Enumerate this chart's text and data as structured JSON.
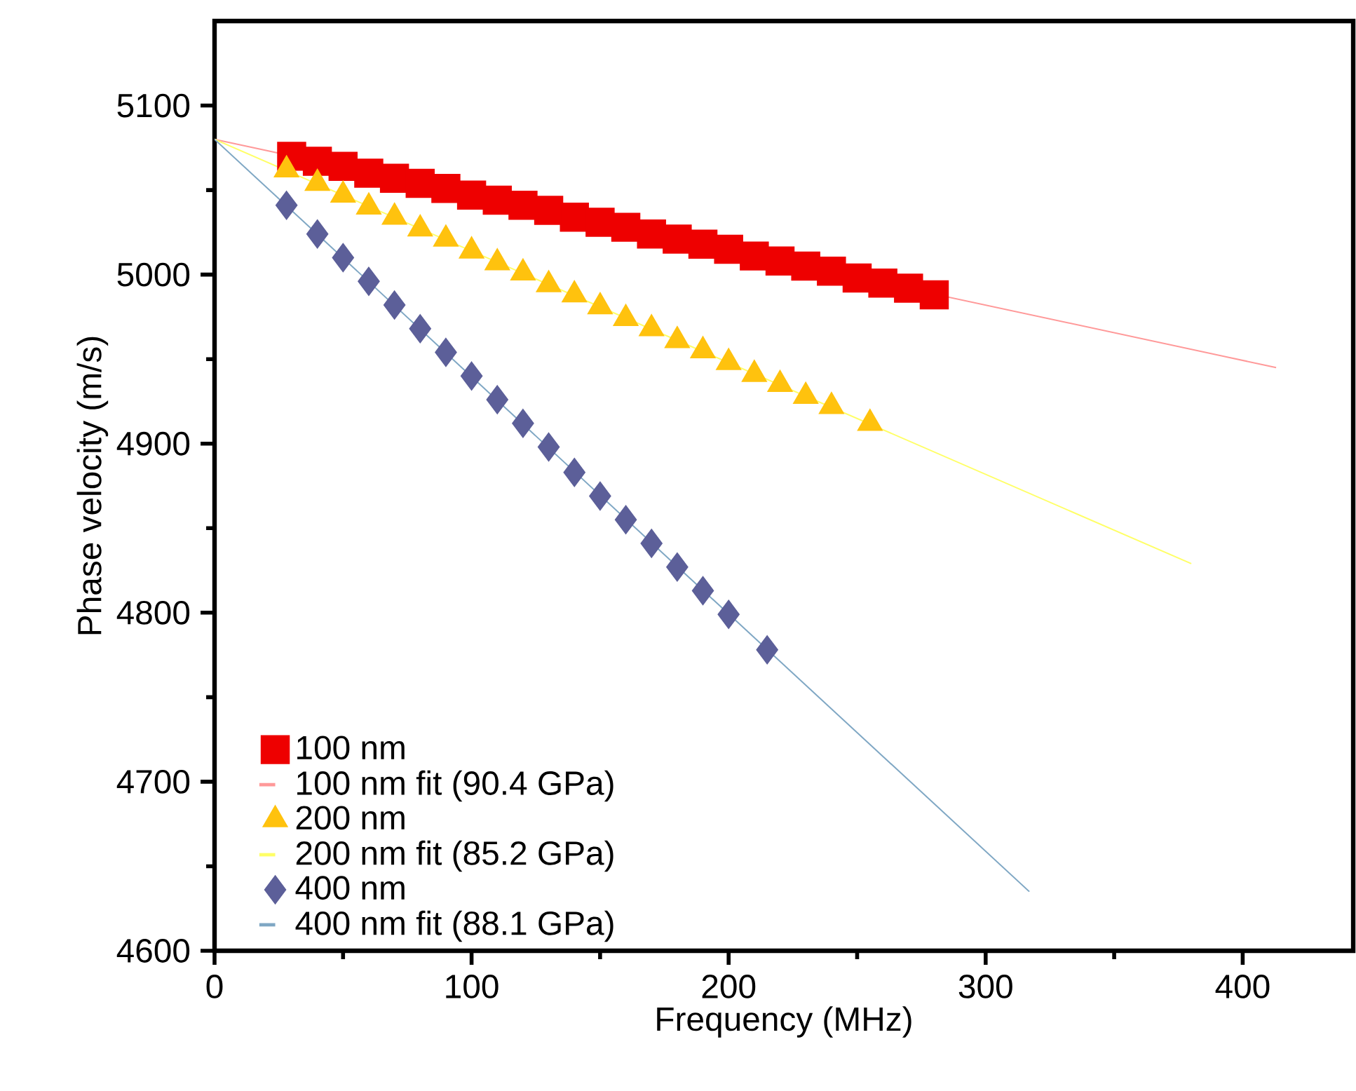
{
  "chart_data": {
    "type": "scatter",
    "xlabel": "Frequency (MHz)",
    "ylabel": "Phase velocity (m/s)",
    "xlim": [
      0,
      443
    ],
    "ylim": [
      4600,
      5150
    ],
    "xticks": [
      0,
      100,
      200,
      300,
      400
    ],
    "yticks": [
      4600,
      4700,
      4800,
      4900,
      5000,
      5100
    ],
    "grid": false,
    "legend": "bottom left",
    "series": [
      {
        "name": "100 nm",
        "marker": "square",
        "color": "#ee0000",
        "x": [
          30,
          40,
          50,
          60,
          70,
          80,
          90,
          100,
          110,
          120,
          130,
          140,
          150,
          160,
          170,
          180,
          190,
          200,
          210,
          220,
          230,
          240,
          250,
          260,
          270,
          280
        ],
        "values": [
          5070,
          5067,
          5064,
          5060,
          5057,
          5054,
          5051,
          5047,
          5044,
          5041,
          5038,
          5034,
          5031,
          5028,
          5024,
          5021,
          5018,
          5015,
          5011,
          5008,
          5005,
          5002,
          4998,
          4995,
          4992,
          4988
        ]
      },
      {
        "name": "100 nm fit (90.4 GPa)",
        "type": "line",
        "marker": "none",
        "color": "#ff9999",
        "x": [
          0,
          413
        ],
        "values": [
          5080,
          4945
        ]
      },
      {
        "name": "200 nm",
        "marker": "triangle",
        "color": "#ffc20e",
        "x": [
          28,
          40,
          50,
          60,
          70,
          80,
          90,
          100,
          110,
          120,
          130,
          140,
          150,
          160,
          170,
          180,
          190,
          200,
          210,
          220,
          230,
          240,
          255
        ],
        "values": [
          5062,
          5054,
          5047,
          5040,
          5034,
          5027,
          5021,
          5014,
          5007,
          5001,
          4994,
          4988,
          4981,
          4974,
          4968,
          4961,
          4955,
          4948,
          4941,
          4935,
          4928,
          4922,
          4912
        ]
      },
      {
        "name": "200 nm fit (85.2 GPa)",
        "type": "line",
        "marker": "none",
        "color": "#ffff66",
        "x": [
          0,
          380
        ],
        "values": [
          5080,
          4829
        ]
      },
      {
        "name": "400 nm",
        "marker": "diamond",
        "color": "#5c5f99",
        "x": [
          28,
          40,
          50,
          60,
          70,
          80,
          90,
          100,
          110,
          120,
          130,
          140,
          150,
          160,
          170,
          180,
          190,
          200,
          215
        ],
        "values": [
          5041,
          5024,
          5010,
          4996,
          4982,
          4968,
          4954,
          4940,
          4926,
          4912,
          4898,
          4883,
          4869,
          4855,
          4841,
          4827,
          4813,
          4799,
          4778
        ]
      },
      {
        "name": "400 nm fit (88.1 GPa)",
        "type": "line",
        "marker": "none",
        "color": "#7fa7c4",
        "x": [
          0,
          317
        ],
        "values": [
          5080,
          4635
        ]
      }
    ]
  }
}
